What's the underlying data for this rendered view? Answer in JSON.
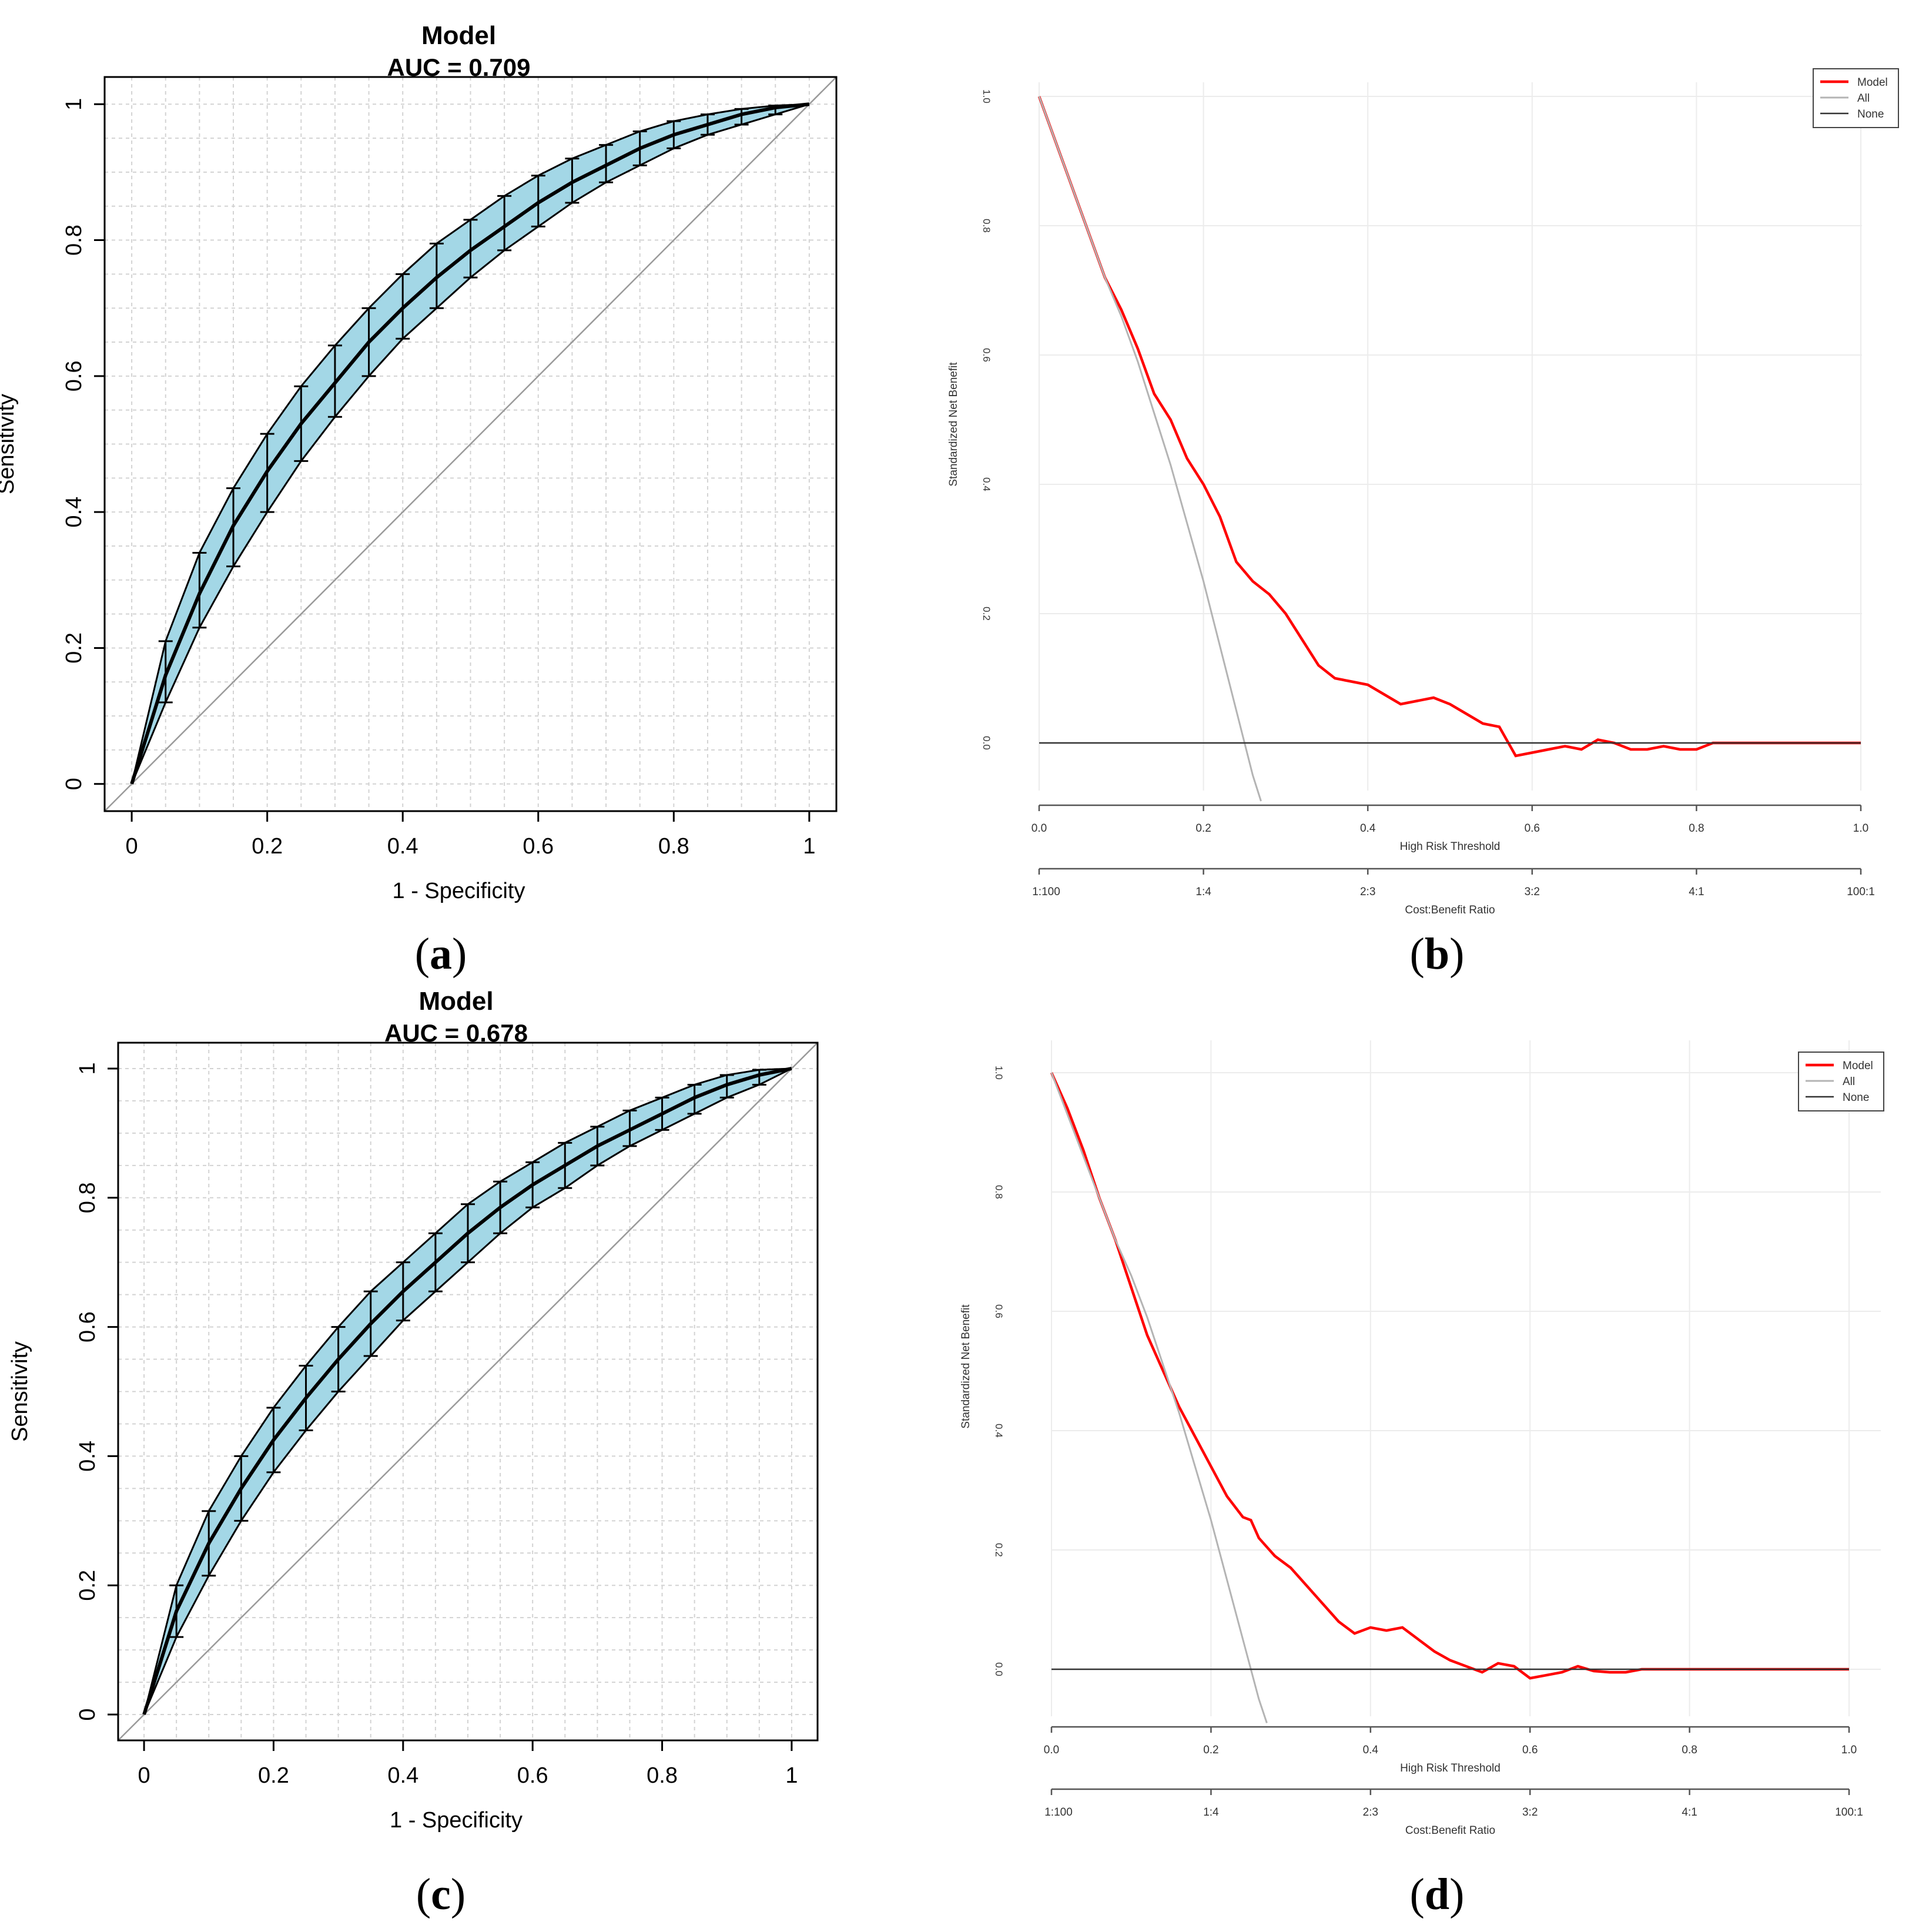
{
  "colors": {
    "ci_band": "#a3d7e6",
    "curve": "#000000",
    "diagonal": "#9a9a9a",
    "grid": "#d3d3d3",
    "model": "#ff0000",
    "all": "#b4b4b4",
    "none": "#333333"
  },
  "panels": {
    "a": {
      "caption_letter": "a",
      "caption_open": "(",
      "caption_close": ")"
    },
    "b": {
      "caption_letter": "b",
      "caption_open": "(",
      "caption_close": ")"
    },
    "c": {
      "caption_letter": "c",
      "caption_open": "(",
      "caption_close": ")"
    },
    "d": {
      "caption_letter": "d",
      "caption_open": "(",
      "caption_close": ")"
    }
  },
  "chart_data": [
    {
      "id": "a",
      "type": "line",
      "title": "Model",
      "subtitle": "AUC =  0.709",
      "xlabel": "1 - Specificity",
      "ylabel": "Sensitivity",
      "xlim": [
        0,
        1
      ],
      "ylim": [
        0,
        1
      ],
      "xticks": [
        "0",
        "0.2",
        "0.4",
        "0.6",
        "0.8",
        "1"
      ],
      "yticks": [
        "0",
        "0.2",
        "0.4",
        "0.6",
        "0.8",
        "1"
      ],
      "grid": true,
      "x": [
        0,
        0.05,
        0.1,
        0.15,
        0.2,
        0.25,
        0.3,
        0.35,
        0.4,
        0.45,
        0.5,
        0.55,
        0.6,
        0.65,
        0.7,
        0.75,
        0.8,
        0.85,
        0.9,
        0.95,
        1
      ],
      "sensitivity": [
        0,
        0.16,
        0.28,
        0.38,
        0.46,
        0.53,
        0.59,
        0.65,
        0.7,
        0.745,
        0.785,
        0.82,
        0.855,
        0.885,
        0.91,
        0.935,
        0.955,
        0.97,
        0.985,
        0.995,
        1
      ],
      "ci_lower": [
        0,
        0.12,
        0.23,
        0.32,
        0.4,
        0.475,
        0.54,
        0.6,
        0.655,
        0.7,
        0.745,
        0.785,
        0.82,
        0.855,
        0.885,
        0.91,
        0.935,
        0.955,
        0.97,
        0.985,
        1
      ],
      "ci_upper": [
        0,
        0.21,
        0.34,
        0.435,
        0.515,
        0.585,
        0.645,
        0.7,
        0.75,
        0.795,
        0.83,
        0.865,
        0.895,
        0.92,
        0.94,
        0.96,
        0.975,
        0.985,
        0.993,
        0.998,
        1
      ]
    },
    {
      "id": "b",
      "type": "line",
      "xlabel": "High Risk Threshold",
      "ylabel": "Standardized Net Benefit",
      "x2label": "Cost:Benefit Ratio",
      "xlim": [
        0,
        1
      ],
      "ylim": [
        -0.1,
        1.0
      ],
      "xticks": [
        "0.0",
        "0.2",
        "0.4",
        "0.6",
        "0.8",
        "1.0"
      ],
      "yticks": [
        "0.0",
        "0.2",
        "0.4",
        "0.6",
        "0.8",
        "1.0"
      ],
      "x2ticks": [
        "1:100",
        "1:4",
        "2:3",
        "3:2",
        "4:1",
        "100:1"
      ],
      "legend": [
        "Model",
        "All",
        "None"
      ],
      "legend_position": "top-right",
      "series": [
        {
          "name": "Model",
          "x": [
            0,
            0.02,
            0.04,
            0.06,
            0.08,
            0.1,
            0.12,
            0.14,
            0.16,
            0.18,
            0.2,
            0.22,
            0.24,
            0.26,
            0.28,
            0.3,
            0.32,
            0.34,
            0.36,
            0.38,
            0.4,
            0.42,
            0.44,
            0.46,
            0.48,
            0.5,
            0.52,
            0.54,
            0.56,
            0.58,
            0.6,
            0.62,
            0.64,
            0.66,
            0.68,
            0.7,
            0.72,
            0.74,
            0.76,
            0.78,
            0.8,
            0.82,
            0.85,
            0.9,
            0.95,
            1.0
          ],
          "y": [
            1.0,
            0.93,
            0.86,
            0.79,
            0.72,
            0.67,
            0.61,
            0.54,
            0.5,
            0.44,
            0.4,
            0.35,
            0.28,
            0.25,
            0.23,
            0.2,
            0.16,
            0.12,
            0.1,
            0.095,
            0.09,
            0.075,
            0.06,
            0.065,
            0.07,
            0.06,
            0.045,
            0.03,
            0.025,
            -0.02,
            -0.015,
            -0.01,
            -0.005,
            -0.01,
            0.005,
            0.0,
            -0.01,
            -0.01,
            -0.005,
            -0.01,
            -0.01,
            0.0,
            0.0,
            0.0,
            0.0,
            0.0
          ]
        },
        {
          "name": "All",
          "x": [
            0,
            0.02,
            0.04,
            0.06,
            0.08,
            0.1,
            0.12,
            0.14,
            0.16,
            0.18,
            0.2,
            0.22,
            0.24,
            0.26,
            0.27
          ],
          "y": [
            1.0,
            0.93,
            0.86,
            0.79,
            0.72,
            0.66,
            0.59,
            0.51,
            0.43,
            0.34,
            0.25,
            0.15,
            0.05,
            -0.05,
            -0.09
          ]
        },
        {
          "name": "None",
          "x": [
            0,
            1
          ],
          "y": [
            0,
            0
          ]
        }
      ]
    },
    {
      "id": "c",
      "type": "line",
      "title": "Model",
      "subtitle": "AUC =  0.678",
      "xlabel": "1 - Specificity",
      "ylabel": "Sensitivity",
      "xlim": [
        0,
        1
      ],
      "ylim": [
        0,
        1
      ],
      "xticks": [
        "0",
        "0.2",
        "0.4",
        "0.6",
        "0.8",
        "1"
      ],
      "yticks": [
        "0",
        "0.2",
        "0.4",
        "0.6",
        "0.8",
        "1"
      ],
      "grid": true,
      "x": [
        0,
        0.05,
        0.1,
        0.15,
        0.2,
        0.25,
        0.3,
        0.35,
        0.4,
        0.45,
        0.5,
        0.55,
        0.6,
        0.65,
        0.7,
        0.75,
        0.8,
        0.85,
        0.9,
        0.95,
        1
      ],
      "sensitivity": [
        0,
        0.16,
        0.265,
        0.35,
        0.425,
        0.49,
        0.55,
        0.605,
        0.655,
        0.7,
        0.745,
        0.785,
        0.82,
        0.85,
        0.88,
        0.905,
        0.93,
        0.955,
        0.975,
        0.99,
        1
      ],
      "ci_lower": [
        0,
        0.12,
        0.215,
        0.3,
        0.375,
        0.44,
        0.5,
        0.555,
        0.61,
        0.655,
        0.7,
        0.745,
        0.785,
        0.815,
        0.85,
        0.88,
        0.905,
        0.93,
        0.955,
        0.975,
        1
      ],
      "ci_upper": [
        0,
        0.2,
        0.315,
        0.4,
        0.475,
        0.54,
        0.6,
        0.655,
        0.7,
        0.745,
        0.79,
        0.825,
        0.855,
        0.885,
        0.91,
        0.935,
        0.955,
        0.975,
        0.99,
        0.998,
        1
      ]
    },
    {
      "id": "d",
      "type": "line",
      "xlabel": "High Risk Threshold",
      "ylabel": "Standardized Net Benefit",
      "x2label": "Cost:Benefit Ratio",
      "xlim": [
        0,
        1
      ],
      "ylim": [
        -0.1,
        1.0
      ],
      "xticks": [
        "0.0",
        "0.2",
        "0.4",
        "0.6",
        "0.8",
        "1.0"
      ],
      "yticks": [
        "0.0",
        "0.2",
        "0.4",
        "0.6",
        "0.8",
        "1.0"
      ],
      "x2ticks": [
        "1:100",
        "1:4",
        "2:3",
        "3:2",
        "4:1",
        "100:1"
      ],
      "legend": [
        "Model",
        "All",
        "None"
      ],
      "legend_position": "top-right",
      "series": [
        {
          "name": "Model",
          "x": [
            0,
            0.02,
            0.04,
            0.06,
            0.08,
            0.1,
            0.12,
            0.14,
            0.16,
            0.18,
            0.2,
            0.22,
            0.24,
            0.25,
            0.26,
            0.28,
            0.3,
            0.32,
            0.34,
            0.36,
            0.38,
            0.4,
            0.42,
            0.44,
            0.46,
            0.48,
            0.5,
            0.52,
            0.54,
            0.56,
            0.58,
            0.6,
            0.62,
            0.64,
            0.66,
            0.68,
            0.7,
            0.72,
            0.74,
            0.8,
            0.9,
            1.0
          ],
          "y": [
            1.0,
            0.94,
            0.87,
            0.79,
            0.72,
            0.64,
            0.56,
            0.5,
            0.44,
            0.39,
            0.34,
            0.29,
            0.255,
            0.25,
            0.22,
            0.19,
            0.17,
            0.14,
            0.11,
            0.08,
            0.06,
            0.07,
            0.065,
            0.07,
            0.05,
            0.03,
            0.015,
            0.005,
            -0.005,
            0.01,
            0.005,
            -0.015,
            -0.01,
            -0.005,
            0.005,
            -0.003,
            -0.005,
            -0.005,
            0.0,
            0.0,
            0.0,
            0.0
          ]
        },
        {
          "name": "All",
          "x": [
            0,
            0.02,
            0.04,
            0.06,
            0.08,
            0.1,
            0.12,
            0.14,
            0.16,
            0.18,
            0.2,
            0.22,
            0.24,
            0.26,
            0.27
          ],
          "y": [
            1.0,
            0.93,
            0.86,
            0.79,
            0.72,
            0.66,
            0.59,
            0.51,
            0.43,
            0.34,
            0.25,
            0.15,
            0.05,
            -0.05,
            -0.09
          ]
        },
        {
          "name": "None",
          "x": [
            0,
            1
          ],
          "y": [
            0,
            0
          ]
        }
      ]
    }
  ]
}
